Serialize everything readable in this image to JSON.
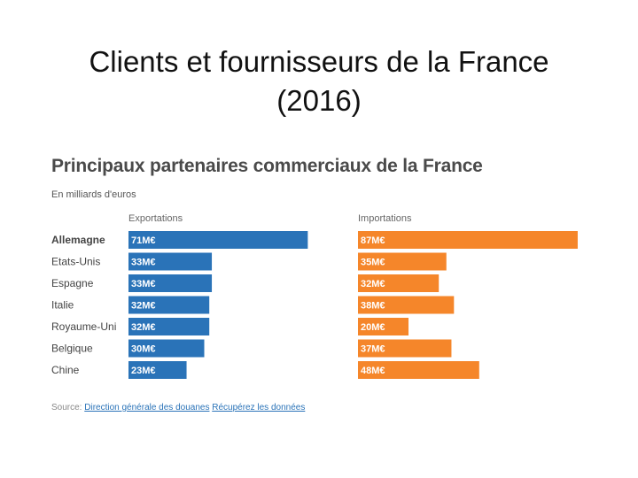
{
  "slide": {
    "title_line1": "Clients et fournisseurs de la France",
    "title_line2": "(2016)"
  },
  "chart_data": {
    "type": "bar",
    "orientation": "horizontal",
    "title": "Principaux partenaires commerciaux de la France",
    "subtitle": "En milliards d'euros",
    "categories": [
      "Allemagne",
      "Etats-Unis",
      "Espagne",
      "Italie",
      "Royaume-Uni",
      "Belgique",
      "Chine"
    ],
    "series": [
      {
        "name": "Exportations",
        "values": [
          71,
          33,
          33,
          32,
          32,
          30,
          23
        ],
        "labels": [
          "71M€",
          "33M€",
          "33M€",
          "32M€",
          "32M€",
          "30M€",
          "23M€"
        ],
        "color": "#2a73b8"
      },
      {
        "name": "Importations",
        "values": [
          87,
          35,
          32,
          38,
          20,
          37,
          48
        ],
        "labels": [
          "87M€",
          "35M€",
          "32M€",
          "38M€",
          "20M€",
          "37M€",
          "48M€"
        ],
        "color": "#f5862a"
      }
    ],
    "highlighted_category": "Allemagne",
    "legend": "column-headers"
  },
  "source": {
    "label": "Source:",
    "link1": "Direction générale des douanes",
    "link2": "Récupérez les données"
  },
  "colors": {
    "export": "#2a73b8",
    "import": "#f5862a",
    "bar_text": "#ffffff",
    "category_text": "#444444"
  }
}
